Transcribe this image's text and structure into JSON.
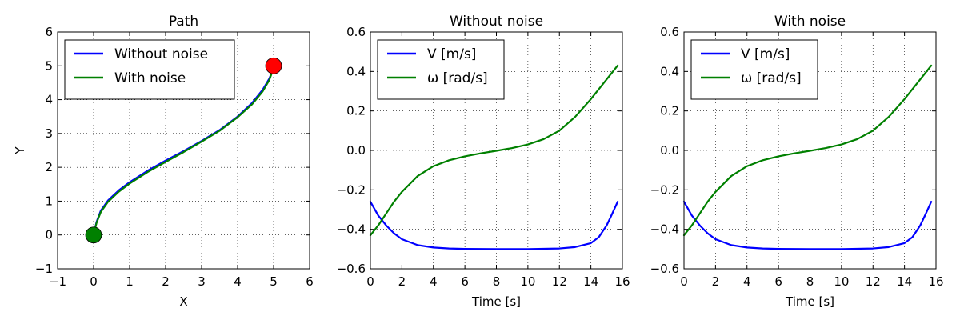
{
  "chart_data": [
    {
      "type": "line",
      "title": "Path",
      "xlabel": "X",
      "ylabel": "Y",
      "xlim": [
        -1,
        6
      ],
      "ylim": [
        -1,
        6
      ],
      "xticks": [
        -1,
        0,
        1,
        2,
        3,
        4,
        5,
        6
      ],
      "yticks": [
        -1,
        0,
        1,
        2,
        3,
        4,
        5,
        6
      ],
      "xtick_labels": [
        "−1",
        "0",
        "1",
        "2",
        "3",
        "4",
        "5",
        "6"
      ],
      "ytick_labels": [
        "−1",
        "0",
        "1",
        "2",
        "3",
        "4",
        "5",
        "6"
      ],
      "grid": true,
      "legend_position": "top-left",
      "series": [
        {
          "name": "Without noise",
          "color": "#0000ff",
          "x": [
            0,
            0.08,
            0.2,
            0.4,
            0.7,
            1.0,
            1.5,
            2.0,
            2.5,
            3.0,
            3.5,
            4.0,
            4.4,
            4.7,
            4.88,
            4.97,
            5.0
          ],
          "y": [
            0,
            0.38,
            0.72,
            1.02,
            1.32,
            1.56,
            1.9,
            2.2,
            2.48,
            2.78,
            3.1,
            3.5,
            3.9,
            4.3,
            4.62,
            4.86,
            5.0
          ]
        },
        {
          "name": "With noise",
          "color": "#008000",
          "x": [
            0,
            0.08,
            0.2,
            0.4,
            0.7,
            1.0,
            1.5,
            2.0,
            2.5,
            3.0,
            3.5,
            4.0,
            4.4,
            4.7,
            4.88,
            4.97,
            5.0
          ],
          "y": [
            0,
            0.35,
            0.68,
            0.98,
            1.28,
            1.52,
            1.86,
            2.16,
            2.45,
            2.76,
            3.08,
            3.48,
            3.86,
            4.25,
            4.58,
            4.84,
            5.0
          ]
        }
      ],
      "markers": [
        {
          "x": 0,
          "y": 0,
          "color": "#008000"
        },
        {
          "x": 5,
          "y": 5,
          "color": "#ff0000"
        }
      ]
    },
    {
      "type": "line",
      "title": "Without noise",
      "xlabel": "Time [s]",
      "ylabel": "",
      "xlim": [
        0,
        16
      ],
      "ylim": [
        -0.6,
        0.6
      ],
      "xticks": [
        0,
        2,
        4,
        6,
        8,
        10,
        12,
        14,
        16
      ],
      "yticks": [
        -0.6,
        -0.4,
        -0.2,
        0.0,
        0.2,
        0.4,
        0.6
      ],
      "xtick_labels": [
        "0",
        "2",
        "4",
        "6",
        "8",
        "10",
        "12",
        "14",
        "16"
      ],
      "ytick_labels": [
        "−0.6",
        "−0.4",
        "−0.2",
        "0.0",
        "0.2",
        "0.4",
        "0.6"
      ],
      "grid": true,
      "legend_position": "top-left",
      "series": [
        {
          "name": "V [m/s]",
          "color": "#0000ff",
          "x": [
            0,
            0.5,
            1,
            1.5,
            2,
            3,
            4,
            5,
            6,
            8,
            10,
            12,
            13,
            14,
            14.5,
            15,
            15.3,
            15.7
          ],
          "y": [
            -0.26,
            -0.33,
            -0.38,
            -0.42,
            -0.45,
            -0.48,
            -0.492,
            -0.497,
            -0.499,
            -0.5,
            -0.5,
            -0.497,
            -0.49,
            -0.47,
            -0.44,
            -0.38,
            -0.33,
            -0.26
          ]
        },
        {
          "name": "ω [rad/s]",
          "color": "#008000",
          "x": [
            0,
            0.5,
            1,
            1.5,
            2,
            3,
            4,
            5,
            6,
            7,
            8,
            9,
            10,
            11,
            12,
            13,
            14,
            15,
            15.7
          ],
          "y": [
            -0.43,
            -0.38,
            -0.32,
            -0.26,
            -0.21,
            -0.13,
            -0.08,
            -0.05,
            -0.03,
            -0.015,
            -0.002,
            0.012,
            0.03,
            0.057,
            0.1,
            0.17,
            0.26,
            0.36,
            0.43
          ]
        }
      ]
    },
    {
      "type": "line",
      "title": "With noise",
      "xlabel": "Time [s]",
      "ylabel": "",
      "xlim": [
        0,
        16
      ],
      "ylim": [
        -0.6,
        0.6
      ],
      "xticks": [
        0,
        2,
        4,
        6,
        8,
        10,
        12,
        14,
        16
      ],
      "yticks": [
        -0.6,
        -0.4,
        -0.2,
        0.0,
        0.2,
        0.4,
        0.6
      ],
      "xtick_labels": [
        "0",
        "2",
        "4",
        "6",
        "8",
        "10",
        "12",
        "14",
        "16"
      ],
      "ytick_labels": [
        "−0.6",
        "−0.4",
        "−0.2",
        "0.0",
        "0.2",
        "0.4",
        "0.6"
      ],
      "grid": true,
      "legend_position": "top-left",
      "series": [
        {
          "name": "V [m/s]",
          "color": "#0000ff",
          "x": [
            0,
            0.5,
            1,
            1.5,
            2,
            3,
            4,
            5,
            6,
            8,
            10,
            12,
            13,
            14,
            14.5,
            15,
            15.3,
            15.7
          ],
          "y": [
            -0.26,
            -0.33,
            -0.38,
            -0.42,
            -0.45,
            -0.48,
            -0.492,
            -0.497,
            -0.499,
            -0.5,
            -0.5,
            -0.497,
            -0.49,
            -0.47,
            -0.44,
            -0.38,
            -0.33,
            -0.26
          ]
        },
        {
          "name": "ω [rad/s]",
          "color": "#008000",
          "x": [
            0,
            0.5,
            1,
            1.5,
            2,
            3,
            4,
            5,
            6,
            7,
            8,
            9,
            10,
            11,
            12,
            13,
            14,
            15,
            15.7
          ],
          "y": [
            -0.43,
            -0.38,
            -0.32,
            -0.26,
            -0.21,
            -0.13,
            -0.08,
            -0.05,
            -0.03,
            -0.015,
            -0.002,
            0.012,
            0.03,
            0.057,
            0.1,
            0.17,
            0.26,
            0.36,
            0.43
          ]
        }
      ]
    }
  ]
}
